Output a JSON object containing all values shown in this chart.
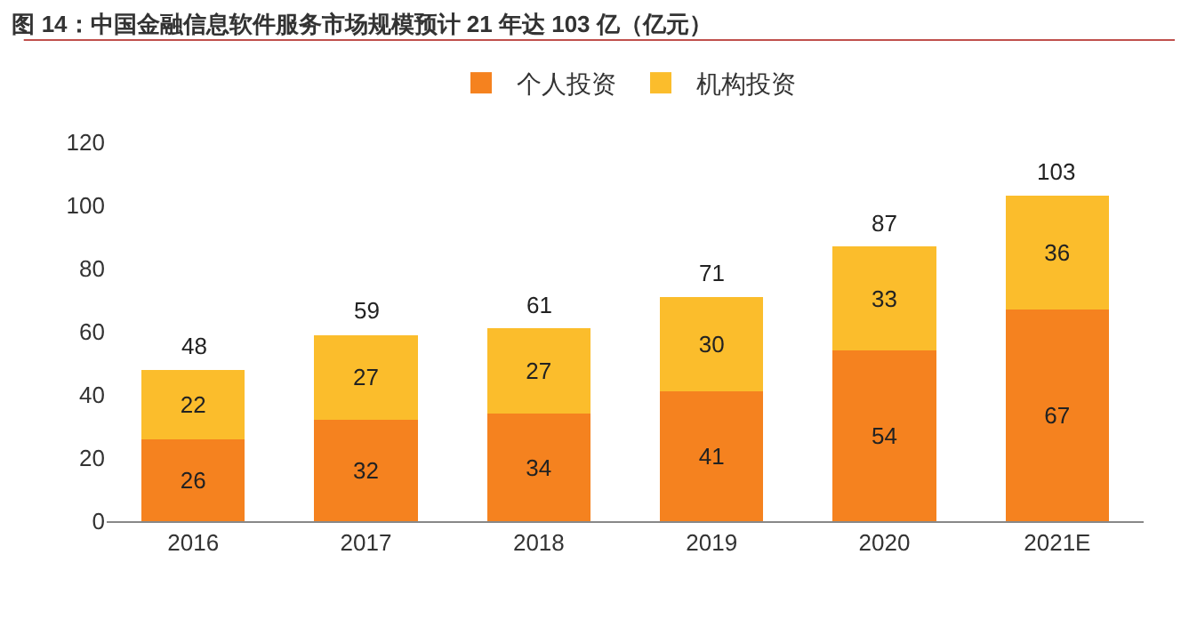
{
  "chart_data": {
    "type": "bar",
    "title": "图 14：中国金融信息软件服务市场规模预计 21 年达 103 亿（亿元）",
    "categories": [
      "2016",
      "2017",
      "2018",
      "2019",
      "2020",
      "2021E"
    ],
    "stacked": true,
    "data_labels": true,
    "legend": "top",
    "grid": false,
    "ylim": [
      0,
      120
    ],
    "yticks": [
      0,
      20,
      40,
      60,
      80,
      100,
      120
    ],
    "series": [
      {
        "name": "个人投资",
        "color": "#f5821f",
        "values": [
          26,
          32,
          34,
          41,
          54,
          67
        ]
      },
      {
        "name": "机构投资",
        "color": "#fbbd2c",
        "values": [
          22,
          27,
          27,
          30,
          33,
          36
        ]
      }
    ],
    "totals": [
      "48",
      "59",
      "61",
      "71",
      "87",
      "103"
    ]
  }
}
